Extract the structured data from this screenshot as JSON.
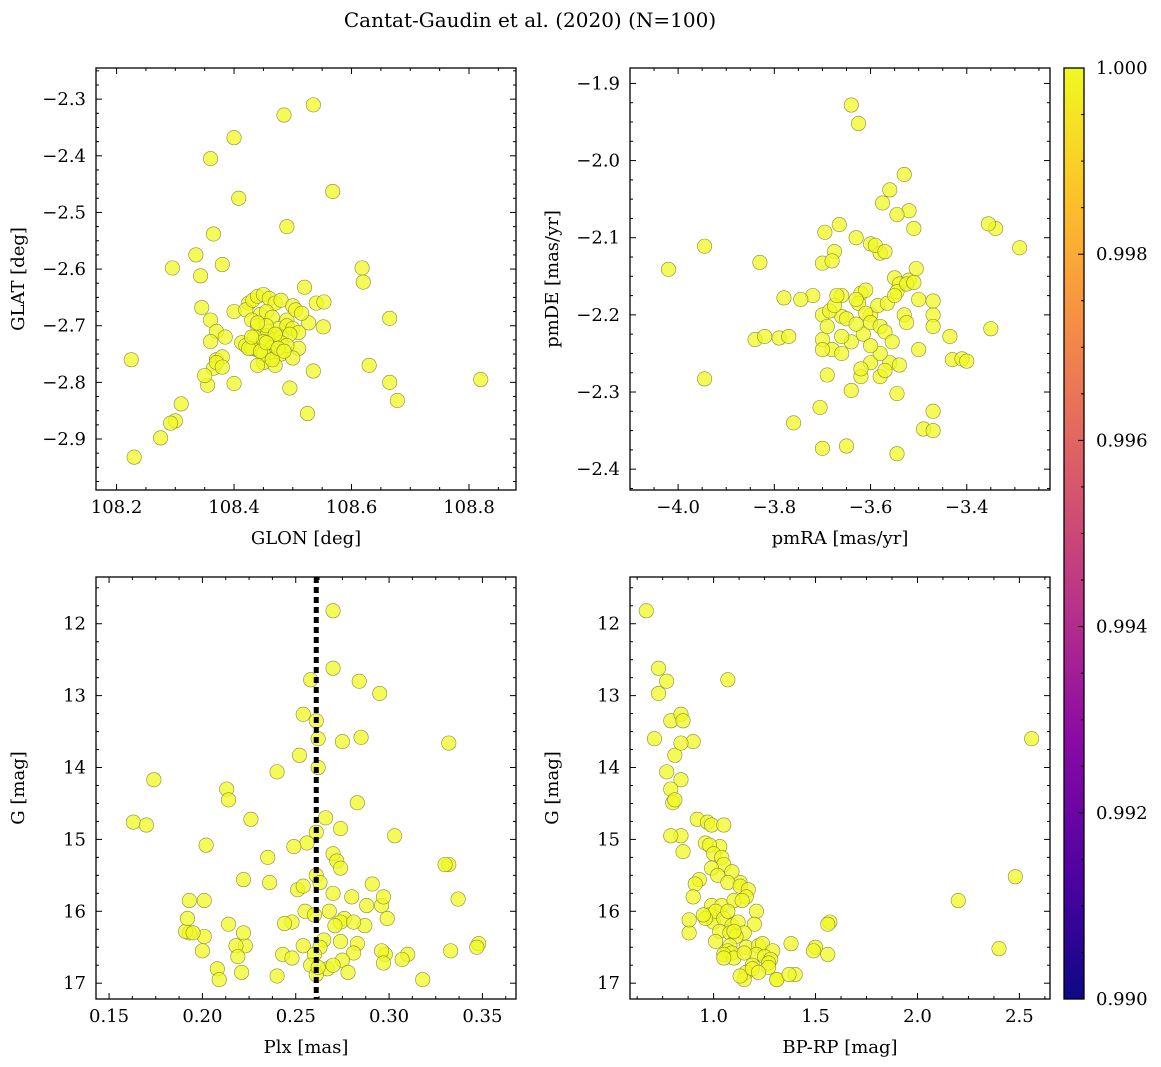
{
  "figure": {
    "title": "Cantat-Gaudin et al. (2020) (N=100)"
  },
  "chart_data": [
    {
      "type": "scatter",
      "id": "glon_glat",
      "title": "",
      "xlabel": "GLON [deg]",
      "ylabel": "GLAT [deg]",
      "xlim": [
        108.165,
        108.88
      ],
      "ylim": [
        -2.99,
        -2.245
      ],
      "invert_y": false,
      "xticks": [
        108.2,
        108.4,
        108.6,
        108.8
      ],
      "xticklabels": [
        "108.2",
        "108.4",
        "108.6",
        "108.8"
      ],
      "yticks": [
        -2.9,
        -2.8,
        -2.7,
        -2.6,
        -2.5,
        -2.4,
        -2.3
      ],
      "yticklabels": [
        "−2.9",
        "−2.8",
        "−2.7",
        "−2.6",
        "−2.5",
        "−2.4",
        "−2.3"
      ],
      "x": [
        108.485,
        108.535,
        108.4,
        108.36,
        108.568,
        108.408,
        108.49,
        108.335,
        108.295,
        108.343,
        108.38,
        108.365,
        108.618,
        108.62,
        108.345,
        108.4,
        108.425,
        108.42,
        108.432,
        108.44,
        108.45,
        108.46,
        108.47,
        108.48,
        108.5,
        108.52,
        108.527,
        108.54,
        108.553,
        108.445,
        108.455,
        108.465,
        108.49,
        108.505,
        108.515,
        108.43,
        108.44,
        108.46,
        108.475,
        108.49,
        108.5,
        108.51,
        108.455,
        108.468,
        108.48,
        108.495,
        108.413,
        108.42,
        108.435,
        108.45,
        108.465,
        108.48,
        108.51,
        108.552,
        108.665,
        108.36,
        108.37,
        108.385,
        108.44,
        108.46,
        108.48,
        108.5,
        108.45,
        108.47,
        108.36,
        108.37,
        108.38,
        108.43,
        108.45,
        108.465,
        108.365,
        108.37,
        108.425,
        108.445,
        108.49,
        108.535,
        108.63,
        108.82,
        108.355,
        108.35,
        108.4,
        108.31,
        108.3,
        108.292,
        108.275,
        108.23,
        108.225,
        108.525,
        108.665,
        108.678,
        108.495,
        108.44,
        108.43,
        108.455,
        108.47,
        108.455,
        108.44,
        108.475,
        108.485,
        108.38
      ],
      "y": [
        -2.328,
        -2.31,
        -2.368,
        -2.405,
        -2.463,
        -2.475,
        -2.525,
        -2.575,
        -2.598,
        -2.612,
        -2.592,
        -2.538,
        -2.598,
        -2.623,
        -2.668,
        -2.675,
        -2.66,
        -2.672,
        -2.655,
        -2.648,
        -2.645,
        -2.652,
        -2.66,
        -2.655,
        -2.665,
        -2.632,
        -2.695,
        -2.66,
        -2.658,
        -2.68,
        -2.675,
        -2.685,
        -2.69,
        -2.672,
        -2.678,
        -2.69,
        -2.7,
        -2.71,
        -2.705,
        -2.7,
        -2.705,
        -2.712,
        -2.718,
        -2.725,
        -2.72,
        -2.715,
        -2.73,
        -2.735,
        -2.72,
        -2.728,
        -2.738,
        -2.73,
        -2.74,
        -2.702,
        -2.687,
        -2.69,
        -2.71,
        -2.72,
        -2.743,
        -2.755,
        -2.75,
        -2.757,
        -2.765,
        -2.77,
        -2.728,
        -2.76,
        -2.755,
        -2.74,
        -2.75,
        -2.76,
        -2.775,
        -2.765,
        -2.74,
        -2.745,
        -2.735,
        -2.78,
        -2.77,
        -2.795,
        -2.805,
        -2.788,
        -2.802,
        -2.838,
        -2.868,
        -2.872,
        -2.898,
        -2.932,
        -2.76,
        -2.855,
        -2.8,
        -2.832,
        -2.81,
        -2.77,
        -2.72,
        -2.7,
        -2.715,
        -2.73,
        -2.695,
        -2.74,
        -2.745,
        -2.773
      ]
    },
    {
      "type": "scatter",
      "id": "pmra_pmde",
      "title": "",
      "xlabel": "pmRA [mas/yr]",
      "ylabel": "pmDE [mas/yr]",
      "xlim": [
        -4.1,
        -3.227
      ],
      "ylim": [
        -2.427,
        -1.88
      ],
      "invert_y": false,
      "xticks": [
        -4.0,
        -3.8,
        -3.6,
        -3.4
      ],
      "xticklabels": [
        "−4.0",
        "−3.8",
        "−3.6",
        "−3.4"
      ],
      "yticks": [
        -2.4,
        -2.3,
        -2.2,
        -2.1,
        -2.0,
        -1.9
      ],
      "yticklabels": [
        "−2.4",
        "−2.3",
        "−2.2",
        "−2.1",
        "−2.0",
        "−1.9"
      ],
      "x": [
        -3.64,
        -3.625,
        -3.53,
        -3.56,
        -3.575,
        -3.52,
        -3.545,
        -3.51,
        -3.665,
        -3.63,
        -3.695,
        -3.675,
        -3.6,
        -3.58,
        -3.59,
        -3.57,
        -3.55,
        -3.52,
        -3.505,
        -3.54,
        -3.545,
        -3.525,
        -3.51,
        -3.5,
        -3.7,
        -3.68,
        -3.66,
        -3.62,
        -3.61,
        -3.72,
        -3.745,
        -3.78,
        -3.79,
        -3.77,
        -3.7,
        -3.68,
        -3.66,
        -3.64,
        -3.615,
        -3.6,
        -3.585,
        -3.565,
        -3.55,
        -3.53,
        -3.47,
        -3.47,
        -3.435,
        -3.43,
        -3.47,
        -3.66,
        -3.625,
        -3.61,
        -3.7,
        -3.685,
        -3.675,
        -3.65,
        -3.63,
        -3.6,
        -3.58,
        -3.57,
        -3.555,
        -3.525,
        -3.5,
        -3.41,
        -3.4,
        -3.35,
        -3.34,
        -3.355,
        -3.29,
        -3.945,
        -3.83,
        -4.02,
        -3.84,
        -3.82,
        -3.945,
        -3.705,
        -3.69,
        -3.76,
        -3.65,
        -3.545,
        -3.49,
        -3.47,
        -3.47,
        -3.7,
        -3.64,
        -3.545,
        -3.62,
        -3.6,
        -3.62,
        -3.58,
        -3.56,
        -3.58,
        -3.6,
        -3.7,
        -3.66,
        -3.69,
        -3.67,
        -3.63,
        -3.57,
        -3.54
      ],
      "y": [
        -1.928,
        -1.952,
        -2.018,
        -2.038,
        -2.055,
        -2.065,
        -2.07,
        -2.088,
        -2.083,
        -2.1,
        -2.093,
        -2.118,
        -2.108,
        -2.12,
        -2.11,
        -2.118,
        -2.152,
        -2.155,
        -2.14,
        -2.16,
        -2.17,
        -2.16,
        -2.158,
        -2.18,
        -2.133,
        -2.13,
        -2.175,
        -2.172,
        -2.168,
        -2.175,
        -2.18,
        -2.178,
        -2.23,
        -2.228,
        -2.232,
        -2.245,
        -2.25,
        -2.235,
        -2.225,
        -2.2,
        -2.188,
        -2.185,
        -2.175,
        -2.2,
        -2.2,
        -2.215,
        -2.228,
        -2.258,
        -2.182,
        -2.202,
        -2.185,
        -2.198,
        -2.2,
        -2.195,
        -2.188,
        -2.205,
        -2.212,
        -2.21,
        -2.215,
        -2.222,
        -2.235,
        -2.21,
        -2.245,
        -2.257,
        -2.26,
        -2.218,
        -2.088,
        -2.082,
        -2.113,
        -2.111,
        -2.132,
        -2.141,
        -2.232,
        -2.228,
        -2.283,
        -2.32,
        -2.278,
        -2.34,
        -2.37,
        -2.38,
        -2.348,
        -2.325,
        -2.35,
        -2.373,
        -2.298,
        -2.302,
        -2.28,
        -2.262,
        -2.27,
        -2.28,
        -2.262,
        -2.25,
        -2.24,
        -2.245,
        -2.228,
        -2.215,
        -2.175,
        -2.18,
        -2.272,
        -2.265
      ]
    },
    {
      "type": "scatter",
      "id": "plx_g",
      "title": "",
      "xlabel": "Plx [mas]",
      "ylabel": "G [mag]",
      "xlim": [
        0.143,
        0.368
      ],
      "ylim": [
        17.22,
        11.35
      ],
      "invert_y": true,
      "vline": 0.261,
      "xticks": [
        0.15,
        0.2,
        0.25,
        0.3,
        0.35
      ],
      "xticklabels": [
        "0.15",
        "0.20",
        "0.25",
        "0.30",
        "0.35"
      ],
      "yticks": [
        12,
        13,
        14,
        15,
        16,
        17
      ],
      "yticklabels": [
        "12",
        "13",
        "14",
        "15",
        "16",
        "17"
      ],
      "x": [
        0.27,
        0.27,
        0.258,
        0.284,
        0.295,
        0.254,
        0.261,
        0.262,
        0.285,
        0.275,
        0.332,
        0.252,
        0.262,
        0.24,
        0.174,
        0.213,
        0.283,
        0.214,
        0.163,
        0.17,
        0.226,
        0.274,
        0.256,
        0.261,
        0.266,
        0.202,
        0.303,
        0.249,
        0.235,
        0.27,
        0.272,
        0.274,
        0.261,
        0.251,
        0.263,
        0.332,
        0.33,
        0.222,
        0.236,
        0.254,
        0.27,
        0.291,
        0.288,
        0.296,
        0.28,
        0.297,
        0.255,
        0.193,
        0.193,
        0.201,
        0.26,
        0.276,
        0.268,
        0.287,
        0.337,
        0.299,
        0.274,
        0.281,
        0.271,
        0.265,
        0.248,
        0.191,
        0.201,
        0.192,
        0.195,
        0.214,
        0.223,
        0.222,
        0.244,
        0.254,
        0.243,
        0.263,
        0.26,
        0.248,
        0.283,
        0.267,
        0.281,
        0.298,
        0.2,
        0.218,
        0.219,
        0.274,
        0.296,
        0.297,
        0.275,
        0.258,
        0.348,
        0.347,
        0.333,
        0.318,
        0.31,
        0.307,
        0.261,
        0.262,
        0.27,
        0.278,
        0.221,
        0.208,
        0.209,
        0.24
      ],
      "y": [
        11.82,
        12.62,
        12.78,
        12.8,
        12.97,
        13.26,
        13.35,
        13.6,
        13.58,
        13.64,
        13.66,
        13.83,
        14.0,
        14.06,
        14.17,
        14.3,
        14.49,
        14.45,
        14.76,
        14.8,
        14.72,
        14.85,
        15.05,
        14.9,
        14.7,
        15.08,
        14.95,
        15.1,
        15.25,
        15.2,
        15.3,
        15.4,
        15.5,
        15.7,
        15.6,
        15.35,
        15.35,
        15.56,
        15.6,
        15.65,
        15.75,
        15.62,
        15.92,
        15.92,
        15.8,
        15.8,
        16.0,
        15.85,
        16.3,
        15.85,
        16.05,
        16.1,
        16.0,
        16.2,
        15.83,
        16.1,
        16.15,
        16.15,
        16.2,
        16.4,
        16.15,
        16.28,
        16.35,
        16.1,
        16.3,
        16.18,
        16.48,
        16.3,
        16.17,
        16.48,
        16.6,
        16.5,
        16.6,
        16.65,
        16.45,
        16.8,
        16.58,
        16.6,
        16.55,
        16.48,
        16.63,
        16.42,
        16.55,
        16.72,
        16.68,
        16.75,
        16.45,
        16.5,
        16.55,
        16.95,
        16.6,
        16.67,
        16.88,
        16.78,
        16.75,
        16.85,
        16.85,
        16.8,
        16.95,
        16.9
      ]
    },
    {
      "type": "scatter",
      "id": "bprp_g",
      "title": "",
      "xlabel": "BP-RP [mag]",
      "ylabel": "G [mag]",
      "xlim": [
        0.59,
        2.65
      ],
      "ylim": [
        17.22,
        11.35
      ],
      "invert_y": true,
      "xticks": [
        1.0,
        1.5,
        2.0,
        2.5
      ],
      "xticklabels": [
        "1.0",
        "1.5",
        "2.0",
        "2.5"
      ],
      "yticks": [
        12,
        13,
        14,
        15,
        16,
        17
      ],
      "yticklabels": [
        "12",
        "13",
        "14",
        "15",
        "16",
        "17"
      ],
      "x": [
        0.67,
        0.73,
        0.73,
        0.77,
        0.79,
        0.84,
        0.85,
        0.71,
        0.9,
        0.81,
        0.84,
        0.77,
        0.84,
        0.79,
        0.8,
        0.81,
        1.07,
        0.92,
        0.97,
        0.99,
        1.05,
        0.84,
        0.79,
        0.96,
        1.03,
        0.98,
        1.0,
        1.04,
        0.85,
        1.05,
        1.13,
        0.99,
        1.02,
        0.93,
        1.09,
        1.07,
        1.13,
        1.17,
        0.91,
        0.9,
        0.99,
        1.04,
        1.1,
        1.16,
        1.14,
        1.21,
        0.98,
        1.0,
        1.01,
        1.05,
        1.09,
        1.12,
        1.2,
        1.03,
        1.08,
        1.15,
        0.88,
        1.01,
        1.11,
        1.08,
        1.16,
        1.22,
        1.24,
        1.29,
        1.38,
        1.57,
        1.56,
        1.5,
        1.49,
        1.21,
        1.25,
        1.28,
        1.27,
        1.19,
        1.16,
        1.15,
        1.31,
        1.31,
        1.4,
        1.56,
        1.07,
        1.09,
        1.05,
        1.19,
        1.13,
        1.1,
        1.27,
        1.37,
        1.22,
        1.15,
        1.05,
        2.48,
        2.2,
        2.4,
        2.56,
        1.1,
        0.96,
        0.95,
        1.07,
        0.88
      ],
      "y": [
        11.82,
        12.62,
        12.97,
        12.8,
        13.35,
        13.26,
        13.35,
        13.6,
        13.64,
        13.83,
        13.66,
        14.06,
        14.17,
        14.3,
        14.49,
        14.45,
        12.78,
        14.72,
        14.76,
        14.8,
        14.8,
        14.95,
        14.95,
        15.05,
        15.1,
        15.08,
        15.2,
        15.25,
        15.17,
        15.35,
        15.6,
        15.4,
        15.5,
        15.56,
        15.45,
        15.6,
        15.65,
        15.7,
        15.62,
        15.8,
        15.92,
        15.92,
        15.85,
        15.8,
        15.85,
        16.0,
        16.05,
        16.15,
        16.0,
        16.1,
        16.2,
        16.15,
        16.18,
        16.28,
        16.3,
        16.3,
        16.3,
        16.42,
        16.35,
        16.48,
        16.5,
        16.48,
        16.45,
        16.55,
        16.45,
        16.15,
        16.18,
        16.5,
        16.55,
        16.6,
        16.63,
        16.67,
        16.72,
        16.75,
        16.85,
        16.95,
        16.95,
        16.95,
        16.88,
        16.6,
        16.55,
        16.58,
        16.6,
        16.8,
        16.9,
        16.65,
        16.78,
        16.88,
        16.85,
        16.58,
        16.65,
        15.52,
        15.85,
        16.52,
        13.6,
        16.28,
        16.1,
        16.05,
        16.0,
        16.12
      ]
    },
    {
      "type": "colorbar",
      "id": "colorbar",
      "colormap": "plasma",
      "vmin": 0.99,
      "vmax": 1.0,
      "ticks": [
        0.99,
        0.992,
        0.994,
        0.996,
        0.998,
        1.0
      ],
      "ticklabels": [
        "0.990",
        "0.992",
        "0.994",
        "0.996",
        "0.998",
        "1.000"
      ]
    }
  ]
}
